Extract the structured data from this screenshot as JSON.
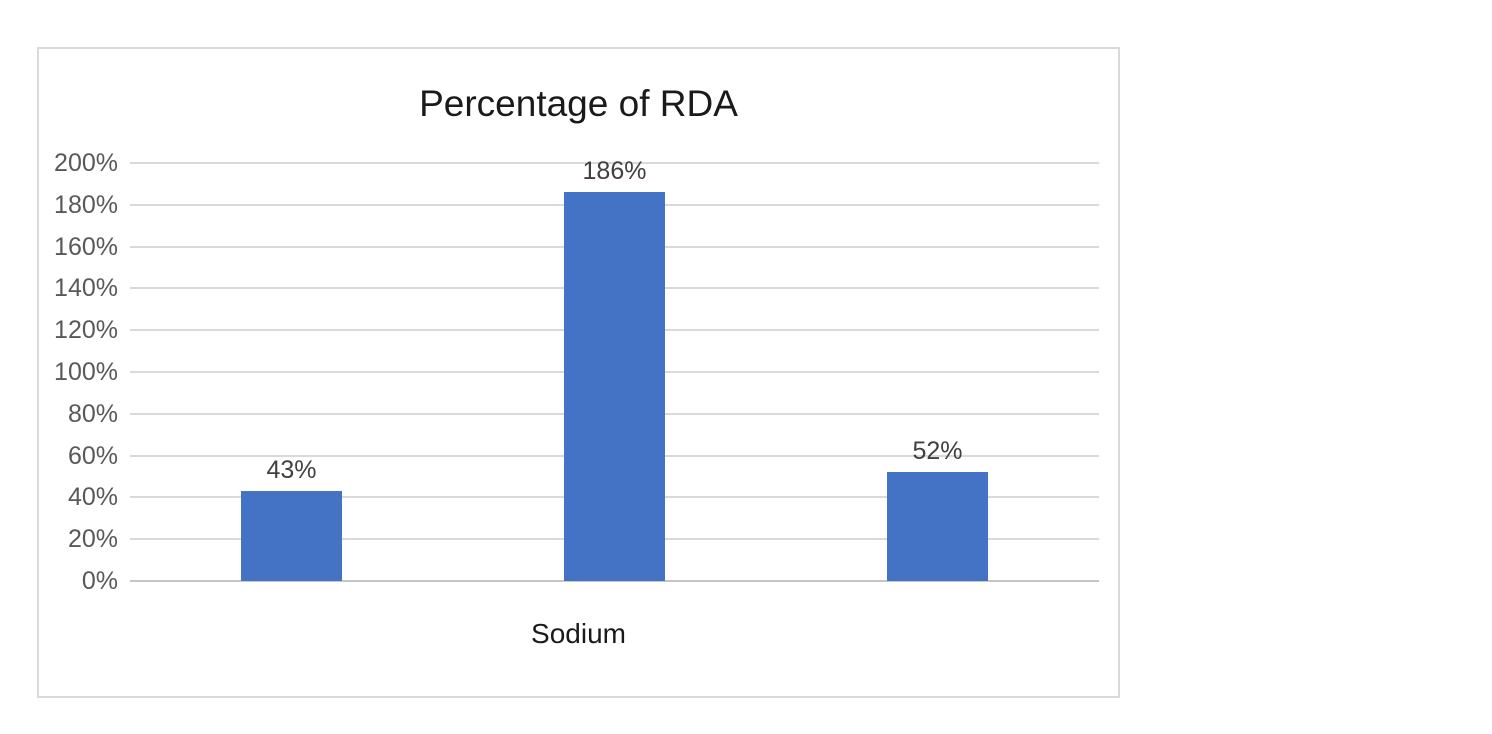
{
  "chart_data": {
    "type": "bar",
    "title": "Percentage of RDA",
    "xlabel": "Sodium",
    "values": [
      43,
      186,
      52
    ],
    "value_labels": [
      "43%",
      "186%",
      "52%"
    ],
    "categories": [
      "",
      "",
      ""
    ],
    "ylim": [
      0,
      200
    ],
    "ytick_step": 20,
    "ytick_labels": [
      "0%",
      "20%",
      "40%",
      "60%",
      "80%",
      "100%",
      "120%",
      "140%",
      "160%",
      "180%",
      "200%"
    ],
    "grid": true,
    "legend": false,
    "bar_color": "#4472C4",
    "gridline_color": "#D9D9D9",
    "axis_line_color": "#C6C6C6",
    "tick_label_color": "#595959",
    "data_label_color": "#404040",
    "title_color": "#1A1A1A",
    "frame_border_color": "#D9D9D9",
    "background_color": "#FFFFFF"
  }
}
